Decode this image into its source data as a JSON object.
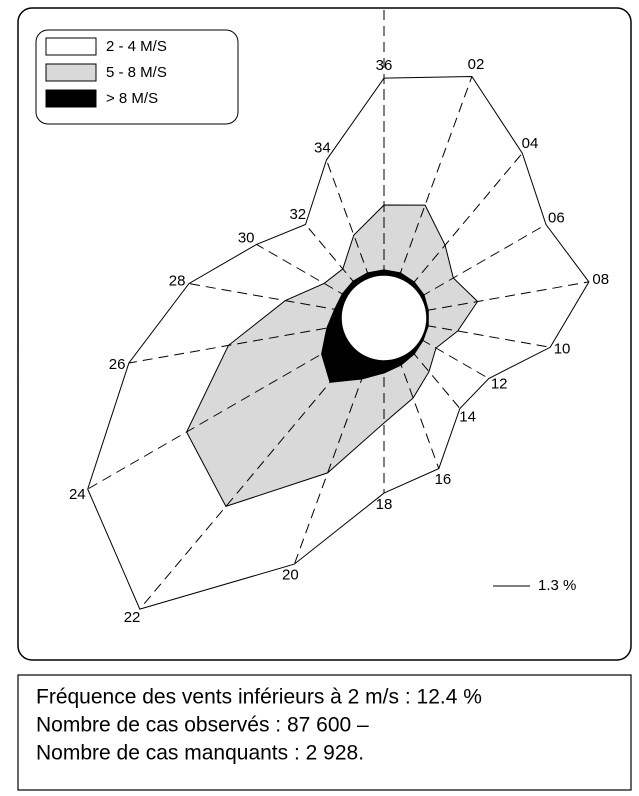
{
  "chart_data": {
    "type": "windrose",
    "categories": [
      "36",
      "02",
      "04",
      "06",
      "08",
      "10",
      "12",
      "14",
      "16",
      "18",
      "20",
      "22",
      "24",
      "26",
      "28",
      "30",
      "32",
      "34"
    ],
    "series": [
      {
        "name": "> 8   M/S",
        "color": "#000000",
        "values": [
          0.18,
          0.18,
          0.14,
          0.11,
          0.07,
          0.07,
          0.07,
          0.14,
          0.25,
          0.42,
          0.77,
          1.44,
          1.02,
          0.53,
          0.25,
          0.18,
          0.18,
          0.18
        ]
      },
      {
        "name": "5 - 8  M/S",
        "color": "#d9d9d9",
        "values": [
          2.28,
          2.53,
          1.69,
          1.19,
          1.76,
          1.05,
          0.53,
          0.81,
          1.23,
          1.76,
          3.51,
          5.69,
          5.48,
          3.51,
          1.76,
          0.74,
          0.56,
          1.41
        ]
      },
      {
        "name": "2 - 4  M/S",
        "color": "#ffffff",
        "values": [
          4.46,
          4.81,
          4.22,
          3.76,
          3.97,
          3.3,
          2.14,
          1.69,
          2.64,
          2.46,
          3.41,
          4.71,
          4.01,
          3.55,
          3.44,
          2.74,
          2.04,
          2.81
        ]
      }
    ],
    "legend_order": [
      2,
      1,
      0
    ],
    "scale": {
      "value": 1.3,
      "label": "1.3 %"
    }
  },
  "notes": [
    "Fréquence des vents inférieurs à 2 m/s : 12.4 %",
    "Nombre de cas observés : 87 600 –",
    "Nombre de cas manquants : 2 928."
  ]
}
